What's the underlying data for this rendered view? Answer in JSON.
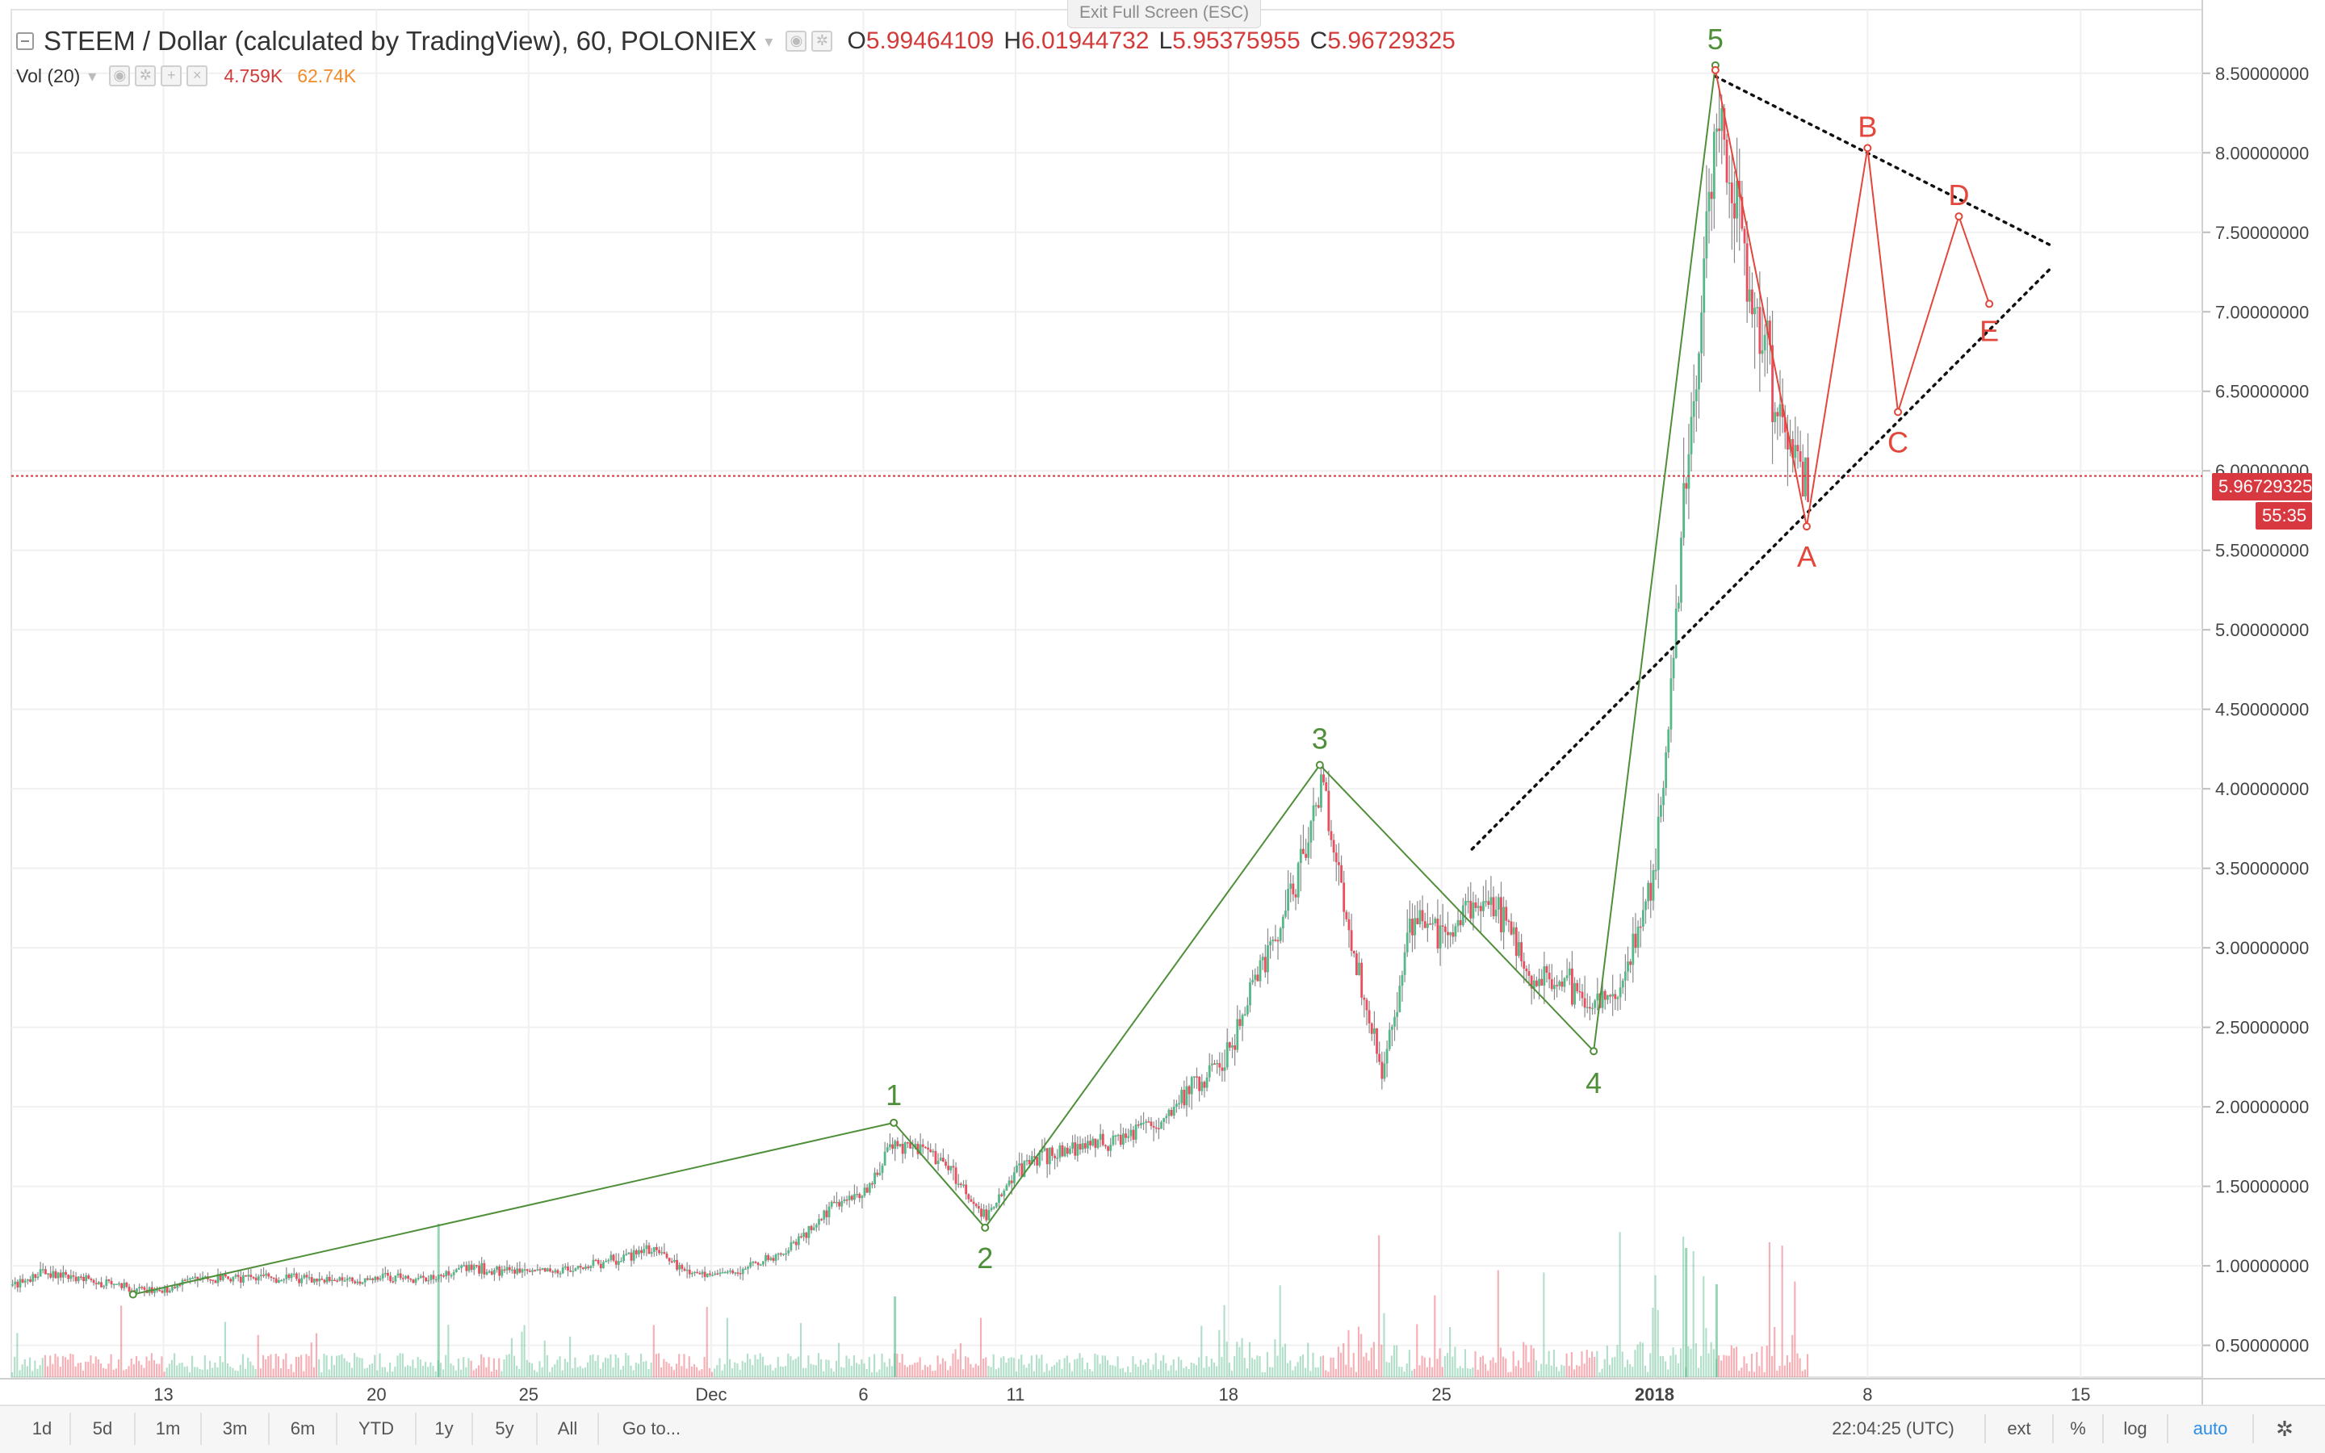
{
  "header": {
    "symbol_title": "STEEM / Dollar (calculated by TradingView), 60, POLONIEX",
    "ohlc": [
      {
        "key": "O",
        "value": "5.99464109"
      },
      {
        "key": "H",
        "value": "6.01944732"
      },
      {
        "key": "L",
        "value": "5.95375955"
      },
      {
        "key": "C",
        "value": "5.96729325"
      }
    ],
    "volume_title": "Vol (20)",
    "volume_value": "4.759K",
    "volume_ma": "62.74K",
    "exit_fullscreen": "Exit Full Screen (ESC)"
  },
  "price_axis": {
    "last_price": "5.96729325",
    "countdown": "55:35"
  },
  "toolbar": {
    "ranges": [
      "1d",
      "5d",
      "1m",
      "3m",
      "6m",
      "YTD",
      "1y",
      "5y",
      "All",
      "Go to..."
    ],
    "clock": "22:04:25 (UTC)",
    "ext": "ext",
    "percent": "%",
    "log": "log",
    "auto": "auto"
  },
  "colors": {
    "candle_up": "#53b987",
    "candle_down": "#eb4d5c",
    "impulse_wave": "#4f8f3a",
    "correction_wave": "#e3463a",
    "trendline": "#111111",
    "last_price_line": "#d8383f"
  },
  "chart_data": {
    "type": "candlestick",
    "title": "STEEM / Dollar (calculated by TradingView), 60, POLONIEX",
    "ylim": [
      0.3,
      8.9
    ],
    "y_ticks": [
      0.5,
      1.0,
      1.5,
      2.0,
      2.5,
      3.0,
      3.5,
      4.0,
      4.5,
      5.0,
      5.5,
      6.0,
      6.5,
      7.0,
      7.5,
      8.0,
      8.5
    ],
    "y_tick_labels": [
      "0.50000000",
      "1.00000000",
      "1.50000000",
      "2.00000000",
      "2.50000000",
      "3.00000000",
      "3.50000000",
      "4.00000000",
      "4.50000000",
      "5.00000000",
      "5.50000000",
      "6.00000000",
      "6.50000000",
      "7.00000000",
      "7.50000000",
      "8.00000000",
      "8.50000000"
    ],
    "x_start": "2017-11-08",
    "x_end": "2018-01-19",
    "x_ticks": [
      {
        "date": "2017-11-13",
        "label": "13"
      },
      {
        "date": "2017-11-20",
        "label": "20"
      },
      {
        "date": "2017-11-25",
        "label": "25"
      },
      {
        "date": "2017-12-01",
        "label": "Dec"
      },
      {
        "date": "2017-12-06",
        "label": "6"
      },
      {
        "date": "2017-12-11",
        "label": "11"
      },
      {
        "date": "2017-12-18",
        "label": "18"
      },
      {
        "date": "2017-12-25",
        "label": "25"
      },
      {
        "date": "2018-01-01",
        "label": "2018"
      },
      {
        "date": "2018-01-08",
        "label": "8"
      },
      {
        "date": "2018-01-15",
        "label": "15"
      }
    ],
    "price_path": [
      [
        "2017-11-08",
        0.88
      ],
      [
        "2017-11-09",
        0.95
      ],
      [
        "2017-11-10",
        0.92
      ],
      [
        "2017-11-11",
        0.9
      ],
      [
        "2017-11-12",
        0.86
      ],
      [
        "2017-11-13",
        0.84
      ],
      [
        "2017-11-14",
        0.92
      ],
      [
        "2017-11-16",
        0.93
      ],
      [
        "2017-11-18",
        0.91
      ],
      [
        "2017-11-20",
        0.92
      ],
      [
        "2017-11-22",
        0.93
      ],
      [
        "2017-11-23",
        1.0
      ],
      [
        "2017-11-24",
        0.96
      ],
      [
        "2017-11-26",
        0.97
      ],
      [
        "2017-11-28",
        1.05
      ],
      [
        "2017-11-29",
        1.1
      ],
      [
        "2017-11-30",
        0.98
      ],
      [
        "2017-12-01",
        0.93
      ],
      [
        "2017-12-03",
        1.05
      ],
      [
        "2017-12-04",
        1.18
      ],
      [
        "2017-12-05",
        1.4
      ],
      [
        "2017-12-06",
        1.47
      ],
      [
        "2017-12-07",
        1.78
      ],
      [
        "2017-12-08",
        1.72
      ],
      [
        "2017-12-09",
        1.55
      ],
      [
        "2017-12-10",
        1.3
      ],
      [
        "2017-12-11",
        1.6
      ],
      [
        "2017-12-12",
        1.7
      ],
      [
        "2017-12-14",
        1.78
      ],
      [
        "2017-12-16",
        1.95
      ],
      [
        "2017-12-18",
        2.35
      ],
      [
        "2017-12-19",
        2.9
      ],
      [
        "2017-12-20",
        3.3
      ],
      [
        "2017-12-21",
        4.05
      ],
      [
        "2017-12-22",
        3.0
      ],
      [
        "2017-12-23",
        2.2
      ],
      [
        "2017-12-24",
        3.2
      ],
      [
        "2017-12-25",
        3.05
      ],
      [
        "2017-12-26",
        3.3
      ],
      [
        "2017-12-27",
        3.2
      ],
      [
        "2017-12-28",
        2.8
      ],
      [
        "2017-12-29",
        2.8
      ],
      [
        "2017-12-30",
        2.6
      ],
      [
        "2017-12-31",
        2.8
      ],
      [
        "2018-01-01",
        3.5
      ],
      [
        "2018-01-02",
        5.9
      ],
      [
        "2018-01-03",
        8.3
      ],
      [
        "2018-01-04",
        7.2
      ],
      [
        "2018-01-05",
        6.4
      ],
      [
        "2018-01-06",
        5.9
      ]
    ],
    "volume_spikes": [
      [
        "2017-11-22",
        1.9
      ],
      [
        "2017-12-07",
        1.0
      ],
      [
        "2018-01-02",
        1.6
      ],
      [
        "2018-01-03",
        1.15
      ]
    ],
    "impulse_wave": [
      {
        "label": "",
        "date": "2017-11-12",
        "price": 0.82
      },
      {
        "label": "1",
        "date": "2017-12-07",
        "price": 1.9
      },
      {
        "label": "2",
        "date": "2017-12-10",
        "price": 1.24
      },
      {
        "label": "3",
        "date": "2017-12-21",
        "price": 4.15
      },
      {
        "label": "4",
        "date": "2017-12-30",
        "price": 2.35
      },
      {
        "label": "5",
        "date": "2018-01-03",
        "price": 8.55
      }
    ],
    "correction_wave": [
      {
        "label": "",
        "date": "2018-01-03",
        "price": 8.52
      },
      {
        "label": "A",
        "date": "2018-01-06",
        "price": 5.65
      },
      {
        "label": "B",
        "date": "2018-01-08",
        "price": 8.03
      },
      {
        "label": "C",
        "date": "2018-01-09",
        "price": 6.37
      },
      {
        "label": "D",
        "date": "2018-01-11",
        "price": 7.6
      },
      {
        "label": "E",
        "date": "2018-01-12",
        "price": 7.05
      }
    ],
    "trendlines": [
      {
        "from": {
          "date": "2018-01-03",
          "price": 8.48
        },
        "to": {
          "date": "2018-01-14",
          "price": 7.42
        }
      },
      {
        "from": {
          "date": "2017-12-26",
          "price": 3.62
        },
        "to": {
          "date": "2018-01-14",
          "price": 7.27
        }
      }
    ],
    "last_price": 5.96729325,
    "legend_position": "top-left"
  }
}
